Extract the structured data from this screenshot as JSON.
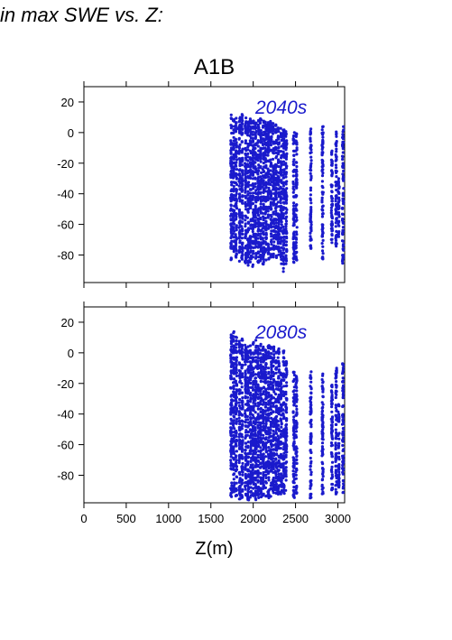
{
  "page": {
    "title": "in max SWE vs. Z:"
  },
  "chart_data": [
    {
      "type": "scatter",
      "title": "A1B",
      "annotation": "2040s",
      "xlabel": "",
      "ylabel": "",
      "xlim": [
        0,
        3080
      ],
      "ylim": [
        -98,
        30
      ],
      "xticks": [
        0,
        500,
        1000,
        1500,
        2000,
        2500,
        3000
      ],
      "yticks": [
        20,
        0,
        -20,
        -40,
        -60,
        -80
      ],
      "color": "#1a1acc",
      "grid": false,
      "columns": [
        {
          "x": 1740,
          "ymin": -84,
          "ymax": 12
        },
        {
          "x": 1770,
          "ymin": -80,
          "ymax": 10
        },
        {
          "x": 1800,
          "ymin": -82,
          "ymax": 10
        },
        {
          "x": 1840,
          "ymin": -85,
          "ymax": 11
        },
        {
          "x": 1870,
          "ymin": -83,
          "ymax": 14
        },
        {
          "x": 1910,
          "ymin": -86,
          "ymax": 10
        },
        {
          "x": 1940,
          "ymin": -87,
          "ymax": 10
        },
        {
          "x": 1970,
          "ymin": -86,
          "ymax": 9
        },
        {
          "x": 2000,
          "ymin": -88,
          "ymax": 8
        },
        {
          "x": 2030,
          "ymin": -85,
          "ymax": 9
        },
        {
          "x": 2060,
          "ymin": -86,
          "ymax": 10
        },
        {
          "x": 2090,
          "ymin": -84,
          "ymax": 10
        },
        {
          "x": 2120,
          "ymin": -86,
          "ymax": 9
        },
        {
          "x": 2150,
          "ymin": -84,
          "ymax": 8
        },
        {
          "x": 2180,
          "ymin": -85,
          "ymax": 7
        },
        {
          "x": 2210,
          "ymin": -83,
          "ymax": 8
        },
        {
          "x": 2240,
          "ymin": -82,
          "ymax": 6
        },
        {
          "x": 2270,
          "ymin": -84,
          "ymax": 7
        },
        {
          "x": 2300,
          "ymin": -80,
          "ymax": 5
        },
        {
          "x": 2330,
          "ymin": -86,
          "ymax": 3
        },
        {
          "x": 2360,
          "ymin": -91,
          "ymax": 2
        },
        {
          "x": 2390,
          "ymin": -88,
          "ymax": 1
        },
        {
          "x": 2480,
          "ymin": -86,
          "ymax": 2
        },
        {
          "x": 2510,
          "ymin": -84,
          "ymax": 0
        },
        {
          "x": 2680,
          "ymin": -76,
          "ymax": 3
        },
        {
          "x": 2820,
          "ymin": -83,
          "ymax": 4
        },
        {
          "x": 2930,
          "ymin": -72,
          "ymax": -10
        },
        {
          "x": 2980,
          "ymin": -75,
          "ymax": 2
        },
        {
          "x": 3010,
          "ymin": -70,
          "ymax": -30
        },
        {
          "x": 3060,
          "ymin": -86,
          "ymax": 5
        }
      ]
    },
    {
      "type": "scatter",
      "title": "",
      "annotation": "2080s",
      "xlabel": "Z(m)",
      "ylabel": "",
      "xlim": [
        0,
        3080
      ],
      "ylim": [
        -98,
        30
      ],
      "xticks": [
        0,
        500,
        1000,
        1500,
        2000,
        2500,
        3000
      ],
      "yticks": [
        20,
        0,
        -20,
        -40,
        -60,
        -80
      ],
      "color": "#1a1acc",
      "grid": false,
      "columns": [
        {
          "x": 1740,
          "ymin": -95,
          "ymax": 14
        },
        {
          "x": 1770,
          "ymin": -92,
          "ymax": 15
        },
        {
          "x": 1800,
          "ymin": -94,
          "ymax": 12
        },
        {
          "x": 1840,
          "ymin": -96,
          "ymax": 8
        },
        {
          "x": 1870,
          "ymin": -95,
          "ymax": 10
        },
        {
          "x": 1910,
          "ymin": -96,
          "ymax": 6
        },
        {
          "x": 1940,
          "ymin": -97,
          "ymax": 5
        },
        {
          "x": 1970,
          "ymin": -96,
          "ymax": 6
        },
        {
          "x": 2000,
          "ymin": -95,
          "ymax": 8
        },
        {
          "x": 2030,
          "ymin": -96,
          "ymax": 10
        },
        {
          "x": 2060,
          "ymin": -95,
          "ymax": 7
        },
        {
          "x": 2090,
          "ymin": -96,
          "ymax": 6
        },
        {
          "x": 2120,
          "ymin": -95,
          "ymax": 5
        },
        {
          "x": 2150,
          "ymin": -94,
          "ymax": 4
        },
        {
          "x": 2180,
          "ymin": -95,
          "ymax": 5
        },
        {
          "x": 2210,
          "ymin": -94,
          "ymax": 5
        },
        {
          "x": 2240,
          "ymin": -93,
          "ymax": 4
        },
        {
          "x": 2270,
          "ymin": -92,
          "ymax": 2
        },
        {
          "x": 2300,
          "ymin": -94,
          "ymax": 3
        },
        {
          "x": 2330,
          "ymin": -93,
          "ymax": -12
        },
        {
          "x": 2360,
          "ymin": -92,
          "ymax": 2
        },
        {
          "x": 2390,
          "ymin": -90,
          "ymax": -5
        },
        {
          "x": 2480,
          "ymin": -95,
          "ymax": -10
        },
        {
          "x": 2510,
          "ymin": -93,
          "ymax": -15
        },
        {
          "x": 2680,
          "ymin": -95,
          "ymax": -12
        },
        {
          "x": 2820,
          "ymin": -93,
          "ymax": -12
        },
        {
          "x": 2930,
          "ymin": -90,
          "ymax": -20
        },
        {
          "x": 2980,
          "ymin": -94,
          "ymax": -10
        },
        {
          "x": 3010,
          "ymin": -88,
          "ymax": -30
        },
        {
          "x": 3060,
          "ymin": -92,
          "ymax": -7
        }
      ]
    }
  ]
}
